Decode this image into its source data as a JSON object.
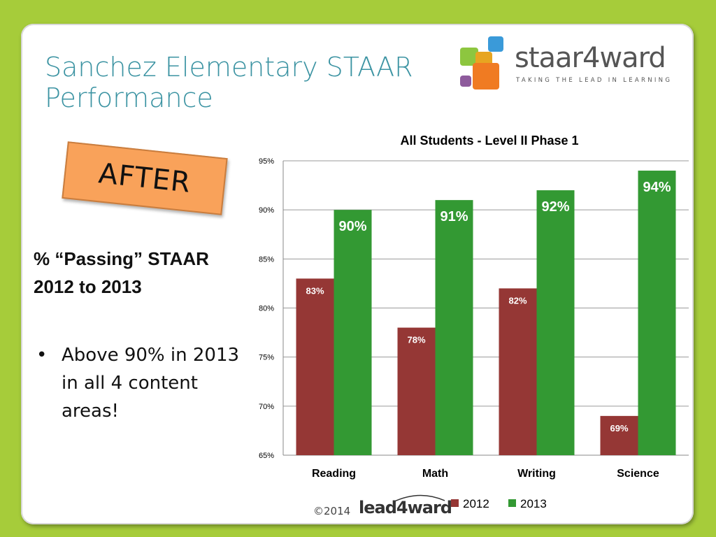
{
  "slide": {
    "title": "Sanchez Elementary STAAR Performance",
    "after_label": "AFTER",
    "heading_line1": "% “Passing” STAAR",
    "heading_line2": "2012 to 2013",
    "bullets": [
      "Above 90% in 2013 in all 4 content areas!"
    ],
    "logo": {
      "name": "staar4ward",
      "tagline": "TAKING THE LEAD IN LEARNING"
    },
    "footer": {
      "copyright": "©2014",
      "brand": "lead4ward"
    }
  },
  "colors": {
    "background": "#a6cc3a",
    "title": "#3b93a2",
    "after_box": "#f9a25a",
    "series_2012": "#953735",
    "series_2013": "#339933"
  },
  "chart_data": {
    "type": "bar",
    "title": "All Students - Level II Phase 1",
    "categories": [
      "Reading",
      "Math",
      "Writing",
      "Science"
    ],
    "series": [
      {
        "name": "2012",
        "values": [
          83,
          78,
          82,
          69
        ],
        "labels": [
          "83%",
          "78%",
          "82%",
          "69%"
        ]
      },
      {
        "name": "2013",
        "values": [
          90,
          91,
          92,
          94
        ],
        "labels": [
          "90%",
          "91%",
          "92%",
          "94%"
        ]
      }
    ],
    "ylim": [
      65,
      95
    ],
    "yticks": [
      65,
      70,
      75,
      80,
      85,
      90,
      95
    ],
    "ytick_labels": [
      "65%",
      "70%",
      "75%",
      "80%",
      "85%",
      "90%",
      "95%"
    ],
    "grid": true,
    "legend_placement": "bottom"
  }
}
